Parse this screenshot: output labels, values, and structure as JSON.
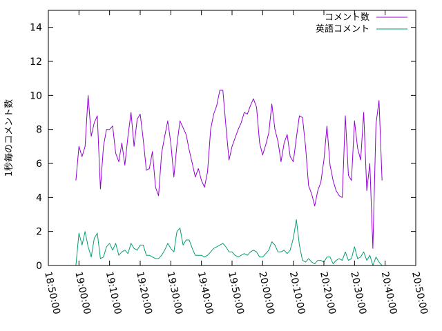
{
  "chart_data": {
    "type": "line",
    "title": "",
    "xlabel": "",
    "ylabel": "1秒毎のコメント数",
    "ylim": [
      0,
      15
    ],
    "yticks": [
      0,
      2,
      4,
      6,
      8,
      10,
      12,
      14
    ],
    "xlim": [
      "18:50:00",
      "20:50:00"
    ],
    "xticks": [
      "18:50:00",
      "19:00:00",
      "19:10:00",
      "19:20:00",
      "19:30:00",
      "19:40:00",
      "19:50:00",
      "20:00:00",
      "20:10:00",
      "20:20:00",
      "20:30:00",
      "20:40:00",
      "20:50:00"
    ],
    "grid": false,
    "legend_position": "top-right",
    "series": [
      {
        "name": "コメント数",
        "color": "#9400d3",
        "points": [
          [
            "18:59:00",
            5.0
          ],
          [
            "19:00:00",
            7.0
          ],
          [
            "19:01:00",
            6.4
          ],
          [
            "19:02:00",
            7.0
          ],
          [
            "19:03:00",
            10.0
          ],
          [
            "19:04:00",
            7.6
          ],
          [
            "19:05:00",
            8.4
          ],
          [
            "19:06:00",
            8.8
          ],
          [
            "19:07:00",
            4.5
          ],
          [
            "19:08:00",
            7.0
          ],
          [
            "19:09:00",
            8.0
          ],
          [
            "19:10:00",
            8.0
          ],
          [
            "19:11:00",
            8.2
          ],
          [
            "19:12:00",
            6.6
          ],
          [
            "19:13:00",
            6.1
          ],
          [
            "19:14:00",
            7.2
          ],
          [
            "19:15:00",
            5.9
          ],
          [
            "19:16:00",
            7.6
          ],
          [
            "19:17:00",
            9.0
          ],
          [
            "19:18:00",
            7.0
          ],
          [
            "19:19:00",
            8.6
          ],
          [
            "19:20:00",
            8.9
          ],
          [
            "19:21:00",
            7.4
          ],
          [
            "19:22:00",
            5.6
          ],
          [
            "19:23:00",
            5.7
          ],
          [
            "19:24:00",
            6.7
          ],
          [
            "19:25:00",
            4.6
          ],
          [
            "19:26:00",
            4.1
          ],
          [
            "19:27:00",
            6.6
          ],
          [
            "19:28:00",
            7.6
          ],
          [
            "19:29:00",
            8.5
          ],
          [
            "19:30:00",
            7.2
          ],
          [
            "19:31:00",
            5.2
          ],
          [
            "19:32:00",
            7.1
          ],
          [
            "19:33:00",
            8.5
          ],
          [
            "19:34:00",
            8.1
          ],
          [
            "19:35:00",
            7.7
          ],
          [
            "19:36:00",
            6.8
          ],
          [
            "19:37:00",
            6.0
          ],
          [
            "19:38:00",
            5.2
          ],
          [
            "19:39:00",
            5.7
          ],
          [
            "19:40:00",
            5.0
          ],
          [
            "19:41:00",
            4.6
          ],
          [
            "19:42:00",
            5.5
          ],
          [
            "19:43:00",
            8.0
          ],
          [
            "19:44:00",
            8.9
          ],
          [
            "19:45:00",
            9.4
          ],
          [
            "19:46:00",
            10.3
          ],
          [
            "19:47:00",
            10.3
          ],
          [
            "19:48:00",
            8.2
          ],
          [
            "19:49:00",
            6.2
          ],
          [
            "19:50:00",
            7.0
          ],
          [
            "19:51:00",
            7.5
          ],
          [
            "19:52:00",
            8.0
          ],
          [
            "19:53:00",
            8.4
          ],
          [
            "19:54:00",
            9.0
          ],
          [
            "19:55:00",
            8.9
          ],
          [
            "19:56:00",
            9.4
          ],
          [
            "19:57:00",
            9.8
          ],
          [
            "19:58:00",
            9.3
          ],
          [
            "19:59:00",
            7.2
          ],
          [
            "20:00:00",
            6.5
          ],
          [
            "20:01:00",
            7.1
          ],
          [
            "20:02:00",
            7.8
          ],
          [
            "20:03:00",
            9.5
          ],
          [
            "20:04:00",
            8.0
          ],
          [
            "20:05:00",
            7.3
          ],
          [
            "20:06:00",
            6.1
          ],
          [
            "20:07:00",
            7.2
          ],
          [
            "20:08:00",
            7.7
          ],
          [
            "20:09:00",
            6.4
          ],
          [
            "20:10:00",
            6.1
          ],
          [
            "20:11:00",
            7.5
          ],
          [
            "20:12:00",
            8.8
          ],
          [
            "20:13:00",
            8.7
          ],
          [
            "20:14:00",
            7.0
          ],
          [
            "20:15:00",
            4.7
          ],
          [
            "20:16:00",
            4.2
          ],
          [
            "20:17:00",
            3.5
          ],
          [
            "20:18:00",
            4.4
          ],
          [
            "20:19:00",
            4.9
          ],
          [
            "20:20:00",
            6.2
          ],
          [
            "20:21:00",
            8.2
          ],
          [
            "20:22:00",
            5.9
          ],
          [
            "20:23:00",
            5.0
          ],
          [
            "20:24:00",
            4.4
          ],
          [
            "20:25:00",
            4.1
          ],
          [
            "20:26:00",
            4.0
          ],
          [
            "20:27:00",
            8.8
          ],
          [
            "20:28:00",
            5.3
          ],
          [
            "20:29:00",
            5.0
          ],
          [
            "20:30:00",
            8.5
          ],
          [
            "20:31:00",
            6.9
          ],
          [
            "20:32:00",
            6.2
          ],
          [
            "20:33:00",
            9.0
          ],
          [
            "20:34:00",
            4.4
          ],
          [
            "20:35:00",
            6.0
          ],
          [
            "20:36:00",
            1.0
          ],
          [
            "20:37:00",
            8.3
          ],
          [
            "20:38:00",
            9.7
          ],
          [
            "20:39:00",
            5.0
          ]
        ]
      },
      {
        "name": "英語コメント",
        "color": "#009e73",
        "points": [
          [
            "18:59:00",
            0.0
          ],
          [
            "19:00:00",
            1.9
          ],
          [
            "19:01:00",
            1.2
          ],
          [
            "19:02:00",
            2.0
          ],
          [
            "19:03:00",
            1.1
          ],
          [
            "19:04:00",
            0.5
          ],
          [
            "19:05:00",
            1.6
          ],
          [
            "19:06:00",
            1.9
          ],
          [
            "19:07:00",
            0.4
          ],
          [
            "19:08:00",
            0.5
          ],
          [
            "19:09:00",
            1.1
          ],
          [
            "19:10:00",
            1.3
          ],
          [
            "19:11:00",
            0.9
          ],
          [
            "19:12:00",
            1.3
          ],
          [
            "19:13:00",
            0.6
          ],
          [
            "19:14:00",
            0.8
          ],
          [
            "19:15:00",
            0.9
          ],
          [
            "19:16:00",
            0.7
          ],
          [
            "19:17:00",
            1.3
          ],
          [
            "19:18:00",
            1.0
          ],
          [
            "19:19:00",
            0.9
          ],
          [
            "19:20:00",
            1.2
          ],
          [
            "19:21:00",
            1.2
          ],
          [
            "19:22:00",
            0.6
          ],
          [
            "19:23:00",
            0.6
          ],
          [
            "19:24:00",
            0.5
          ],
          [
            "19:25:00",
            0.4
          ],
          [
            "19:26:00",
            0.4
          ],
          [
            "19:27:00",
            0.6
          ],
          [
            "19:28:00",
            0.9
          ],
          [
            "19:29:00",
            1.3
          ],
          [
            "19:30:00",
            1.0
          ],
          [
            "19:31:00",
            0.8
          ],
          [
            "19:32:00",
            2.0
          ],
          [
            "19:33:00",
            2.2
          ],
          [
            "19:34:00",
            1.2
          ],
          [
            "19:35:00",
            1.5
          ],
          [
            "19:36:00",
            1.5
          ],
          [
            "19:37:00",
            1.0
          ],
          [
            "19:38:00",
            0.6
          ],
          [
            "19:39:00",
            0.6
          ],
          [
            "19:40:00",
            0.6
          ],
          [
            "19:41:00",
            0.5
          ],
          [
            "19:42:00",
            0.6
          ],
          [
            "19:43:00",
            0.8
          ],
          [
            "19:44:00",
            1.0
          ],
          [
            "19:45:00",
            1.1
          ],
          [
            "19:46:00",
            1.2
          ],
          [
            "19:47:00",
            1.3
          ],
          [
            "19:48:00",
            1.1
          ],
          [
            "19:49:00",
            0.8
          ],
          [
            "19:50:00",
            0.8
          ],
          [
            "19:51:00",
            0.6
          ],
          [
            "19:52:00",
            0.5
          ],
          [
            "19:53:00",
            0.6
          ],
          [
            "19:54:00",
            0.7
          ],
          [
            "19:55:00",
            0.6
          ],
          [
            "19:56:00",
            0.8
          ],
          [
            "19:57:00",
            0.9
          ],
          [
            "19:58:00",
            0.8
          ],
          [
            "19:59:00",
            0.5
          ],
          [
            "20:00:00",
            0.5
          ],
          [
            "20:01:00",
            0.7
          ],
          [
            "20:02:00",
            0.9
          ],
          [
            "20:03:00",
            1.4
          ],
          [
            "20:04:00",
            1.2
          ],
          [
            "20:05:00",
            0.8
          ],
          [
            "20:06:00",
            0.8
          ],
          [
            "20:07:00",
            0.9
          ],
          [
            "20:08:00",
            0.7
          ],
          [
            "20:09:00",
            0.9
          ],
          [
            "20:10:00",
            1.6
          ],
          [
            "20:11:00",
            2.7
          ],
          [
            "20:12:00",
            1.2
          ],
          [
            "20:13:00",
            0.3
          ],
          [
            "20:14:00",
            0.2
          ],
          [
            "20:15:00",
            0.4
          ],
          [
            "20:16:00",
            0.2
          ],
          [
            "20:17:00",
            0.1
          ],
          [
            "20:18:00",
            0.3
          ],
          [
            "20:19:00",
            0.3
          ],
          [
            "20:20:00",
            0.2
          ],
          [
            "20:21:00",
            0.5
          ],
          [
            "20:22:00",
            0.5
          ],
          [
            "20:23:00",
            0.1
          ],
          [
            "20:24:00",
            0.3
          ],
          [
            "20:25:00",
            0.4
          ],
          [
            "20:26:00",
            0.3
          ],
          [
            "20:27:00",
            0.8
          ],
          [
            "20:28:00",
            0.3
          ],
          [
            "20:29:00",
            0.4
          ],
          [
            "20:30:00",
            1.1
          ],
          [
            "20:31:00",
            0.4
          ],
          [
            "20:32:00",
            0.5
          ],
          [
            "20:33:00",
            0.8
          ],
          [
            "20:34:00",
            0.3
          ],
          [
            "20:35:00",
            0.6
          ],
          [
            "20:36:00",
            0.0
          ],
          [
            "20:37:00",
            0.5
          ],
          [
            "20:38:00",
            0.2
          ],
          [
            "20:39:00",
            0.0
          ]
        ]
      }
    ]
  }
}
